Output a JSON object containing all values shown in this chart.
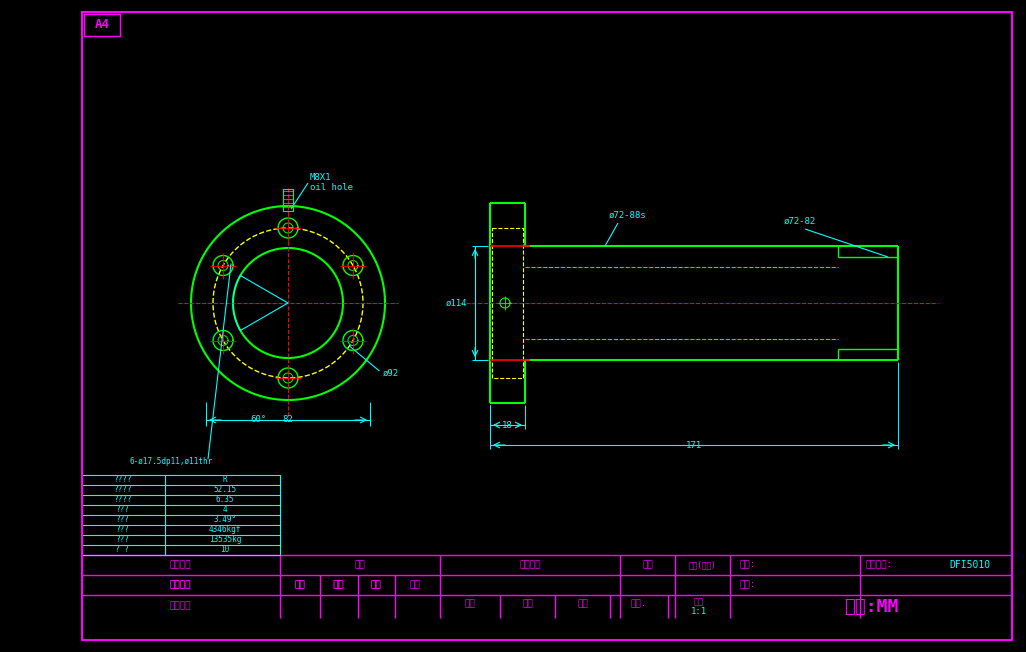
{
  "bg_color": "#000000",
  "page_bg": "#0a0a0a",
  "outer_bg": "#6a8a9f",
  "border_color": "#FF00FF",
  "green": "#00FF00",
  "cyan": "#00FFFF",
  "red": "#FF0000",
  "yellow": "#FFFF00",
  "magenta": "#FF00FF",
  "title_label": "A4",
  "unit_label": "单位:MM",
  "drawing_number": "DFI5010",
  "client_label": "客户名称",
  "date_label": "日期",
  "qty_label": "数量(单台)",
  "part_no_label": "型号:",
  "ref_no_label": "存档图号:",
  "material_label": "材料:",
  "drawn_label": "绘图",
  "designed_label": "设计",
  "checked_label": "审核",
  "view_label": "视角.",
  "change_label": "更改标记",
  "count_label": "处数",
  "date_col_label": "日期",
  "sign_label": "签名",
  "customer_confirm": "客户确认",
  "scale_label": "1:1",
  "ratio_label": "比例",
  "specs": [
    [
      "????",
      "R"
    ],
    [
      "????",
      "52.15"
    ],
    [
      "????",
      "6.35"
    ],
    [
      "???",
      "4"
    ],
    [
      "???",
      "3.49°"
    ],
    [
      "???",
      "4346kgf"
    ],
    [
      "???",
      "13535kg"
    ],
    [
      "? ?",
      "10"
    ]
  ]
}
